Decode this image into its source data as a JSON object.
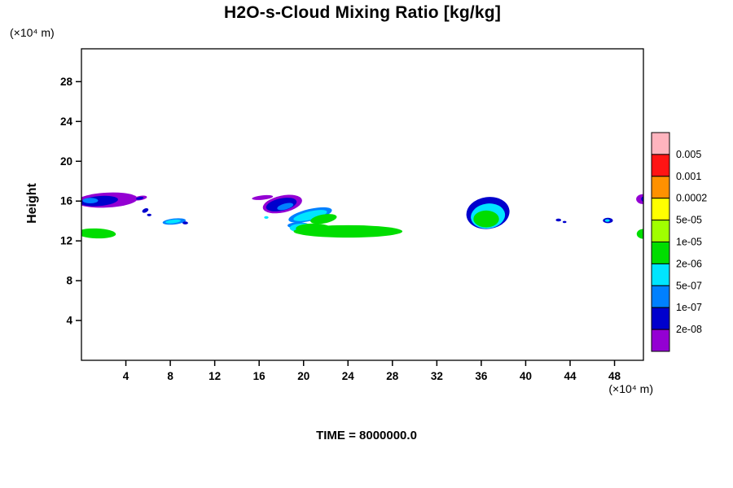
{
  "title": "H2O-s-Cloud Mixing Ratio [kg/kg]",
  "footer": {
    "time_label": "TIME = 8000000.0"
  },
  "axes": {
    "y_title": "Height",
    "y_unit": "(×10⁴ m)",
    "x_unit": "(×10⁴ m)"
  },
  "chart_data": {
    "type": "heatmap",
    "title": "H2O-s-Cloud Mixing Ratio [kg/kg]",
    "xlabel": "(×10⁴ m)",
    "ylabel": "Height (×10⁴ m)",
    "time_annotation": "TIME = 8000000.0",
    "xlim": [
      0,
      50.6
    ],
    "ylim": [
      0,
      31.3
    ],
    "x_ticks": [
      "4",
      "8",
      "12",
      "16",
      "20",
      "24",
      "28",
      "32",
      "36",
      "40",
      "44",
      "48"
    ],
    "y_ticks": [
      "4",
      "8",
      "12",
      "16",
      "20",
      "24",
      "28"
    ],
    "grid": false,
    "legend_position": "right",
    "colorbar": {
      "tick_labels_top_to_bottom": [
        "0.005",
        "0.001",
        "0.0002",
        "5e-05",
        "1e-05",
        "2e-06",
        "5e-07",
        "1e-07",
        "2e-08"
      ],
      "colors_top_to_bottom": [
        "#ffb4be",
        "#ff1414",
        "#ff9100",
        "#ffff00",
        "#a0ff00",
        "#00dd00",
        "#00e5ff",
        "#0080ff",
        "#0000cd",
        "#9400d3"
      ]
    },
    "palette": {
      "purple": "#9400d3",
      "darkblue": "#0000cd",
      "blue": "#0080ff",
      "cyan": "#00e5ff",
      "green": "#00dd00"
    },
    "cloud_regions": [
      {
        "color": "green",
        "x": 1.35,
        "y": 12.75,
        "rx": 1.75,
        "ry": 0.5,
        "rot": 2
      },
      {
        "color": "purple",
        "x": 2.3,
        "y": 16.1,
        "rx": 2.75,
        "ry": 0.75,
        "rot": -3
      },
      {
        "color": "darkblue",
        "x": 1.6,
        "y": 16.0,
        "rx": 1.7,
        "ry": 0.5,
        "rot": -5
      },
      {
        "color": "blue",
        "x": 0.8,
        "y": 16.05,
        "rx": 0.7,
        "ry": 0.28,
        "rot": 0
      },
      {
        "color": "purple",
        "x": 5.3,
        "y": 16.3,
        "rx": 0.6,
        "ry": 0.22,
        "rot": -10
      },
      {
        "color": "darkblue",
        "x": 5.25,
        "y": 16.28,
        "rx": 0.35,
        "ry": 0.13,
        "rot": -10
      },
      {
        "color": "darkblue",
        "x": 5.75,
        "y": 15.05,
        "rx": 0.3,
        "ry": 0.2,
        "rot": -25
      },
      {
        "color": "darkblue",
        "x": 6.1,
        "y": 14.6,
        "rx": 0.2,
        "ry": 0.13,
        "rot": 0
      },
      {
        "color": "blue",
        "x": 8.35,
        "y": 13.95,
        "rx": 1.05,
        "ry": 0.3,
        "rot": -6
      },
      {
        "color": "cyan",
        "x": 8.25,
        "y": 13.95,
        "rx": 0.7,
        "ry": 0.18,
        "rot": -6
      },
      {
        "color": "darkblue",
        "x": 9.35,
        "y": 13.8,
        "rx": 0.25,
        "ry": 0.15,
        "rot": 0
      },
      {
        "color": "purple",
        "x": 16.3,
        "y": 16.35,
        "rx": 0.95,
        "ry": 0.22,
        "rot": -6
      },
      {
        "color": "cyan",
        "x": 16.65,
        "y": 14.35,
        "rx": 0.2,
        "ry": 0.13,
        "rot": 0
      },
      {
        "color": "purple",
        "x": 18.1,
        "y": 15.7,
        "rx": 1.8,
        "ry": 0.85,
        "rot": -12
      },
      {
        "color": "darkblue",
        "x": 18.0,
        "y": 15.65,
        "rx": 1.4,
        "ry": 0.62,
        "rot": -12
      },
      {
        "color": "blue",
        "x": 18.35,
        "y": 15.45,
        "rx": 0.75,
        "ry": 0.3,
        "rot": -15
      },
      {
        "color": "blue",
        "x": 20.6,
        "y": 14.6,
        "rx": 2.0,
        "ry": 0.6,
        "rot": -13
      },
      {
        "color": "cyan",
        "x": 20.6,
        "y": 14.55,
        "rx": 1.55,
        "ry": 0.42,
        "rot": -13
      },
      {
        "color": "green",
        "x": 21.8,
        "y": 14.2,
        "rx": 1.2,
        "ry": 0.45,
        "rot": -10
      },
      {
        "color": "blue",
        "x": 19.55,
        "y": 13.55,
        "rx": 1.0,
        "ry": 0.32,
        "rot": 0
      },
      {
        "color": "cyan",
        "x": 19.9,
        "y": 13.3,
        "rx": 1.15,
        "ry": 0.45,
        "rot": 0
      },
      {
        "color": "green",
        "x": 24.0,
        "y": 12.95,
        "rx": 4.9,
        "ry": 0.62,
        "rot": 0
      },
      {
        "color": "green",
        "x": 20.9,
        "y": 13.25,
        "rx": 1.6,
        "ry": 0.5,
        "rot": 0
      },
      {
        "color": "darkblue",
        "x": 36.6,
        "y": 14.8,
        "rx": 1.95,
        "ry": 1.6,
        "rot": -8
      },
      {
        "color": "cyan",
        "x": 36.6,
        "y": 14.5,
        "rx": 1.55,
        "ry": 1.25,
        "rot": -8
      },
      {
        "color": "green",
        "x": 36.45,
        "y": 14.2,
        "rx": 1.15,
        "ry": 0.85,
        "rot": 0
      },
      {
        "color": "darkblue",
        "x": 42.95,
        "y": 14.1,
        "rx": 0.24,
        "ry": 0.15,
        "rot": 0
      },
      {
        "color": "darkblue",
        "x": 43.5,
        "y": 13.9,
        "rx": 0.17,
        "ry": 0.11,
        "rot": 0
      },
      {
        "color": "darkblue",
        "x": 47.4,
        "y": 14.05,
        "rx": 0.45,
        "ry": 0.27,
        "rot": 0
      },
      {
        "color": "cyan",
        "x": 47.35,
        "y": 14.05,
        "rx": 0.22,
        "ry": 0.13,
        "rot": 0
      },
      {
        "color": "purple",
        "x": 50.55,
        "y": 16.2,
        "rx": 0.6,
        "ry": 0.5,
        "rot": 0
      },
      {
        "color": "darkblue",
        "x": 50.75,
        "y": 16.2,
        "rx": 0.35,
        "ry": 0.3,
        "rot": 0
      },
      {
        "color": "green",
        "x": 50.6,
        "y": 12.7,
        "rx": 0.6,
        "ry": 0.5,
        "rot": 0
      }
    ]
  }
}
